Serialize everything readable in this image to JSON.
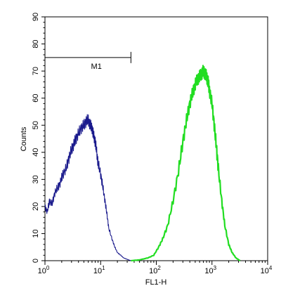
{
  "chart_data": {
    "type": "line",
    "xlabel": "FL1-H",
    "ylabel": "Counts",
    "x_scale": "log",
    "xlim": [
      1,
      10000
    ],
    "ylim": [
      0,
      90
    ],
    "x_ticks": [
      {
        "value": 1,
        "base": "10",
        "exp": "0"
      },
      {
        "value": 10,
        "base": "10",
        "exp": "1"
      },
      {
        "value": 100,
        "base": "10",
        "exp": "2"
      },
      {
        "value": 1000,
        "base": "10",
        "exp": "3"
      },
      {
        "value": 10000,
        "base": "10",
        "exp": "4"
      }
    ],
    "y_ticks": [
      "0",
      "10",
      "20",
      "30",
      "40",
      "50",
      "60",
      "70",
      "80",
      "90"
    ],
    "grid": false,
    "marker_gate": {
      "label": "M1",
      "x_start": 1,
      "x_end": 35,
      "y": 75
    },
    "series": [
      {
        "color": "#1a1a8c",
        "points": [
          [
            1.0,
            20
          ],
          [
            1.1,
            18
          ],
          [
            1.2,
            22
          ],
          [
            1.35,
            21
          ],
          [
            1.5,
            25
          ],
          [
            1.7,
            27
          ],
          [
            1.9,
            29
          ],
          [
            2.1,
            32
          ],
          [
            2.4,
            34
          ],
          [
            2.7,
            38
          ],
          [
            3.0,
            41
          ],
          [
            3.3,
            43
          ],
          [
            3.6,
            45
          ],
          [
            4.0,
            47
          ],
          [
            4.5,
            49
          ],
          [
            5.0,
            50
          ],
          [
            5.5,
            51.5
          ],
          [
            6.0,
            52
          ],
          [
            6.5,
            50
          ],
          [
            7.0,
            49
          ],
          [
            7.5,
            46
          ],
          [
            8.0,
            44
          ],
          [
            8.5,
            40
          ],
          [
            9.0,
            36
          ],
          [
            10,
            32
          ],
          [
            11,
            27
          ],
          [
            12,
            22
          ],
          [
            13,
            17
          ],
          [
            14,
            12
          ],
          [
            16,
            8
          ],
          [
            18,
            5
          ],
          [
            20,
            3
          ],
          [
            23,
            2
          ],
          [
            26,
            1
          ],
          [
            30,
            0.5
          ],
          [
            35,
            0
          ]
        ]
      },
      {
        "color": "#22dd22",
        "points": [
          [
            35,
            0
          ],
          [
            50,
            0.3
          ],
          [
            70,
            1
          ],
          [
            90,
            2
          ],
          [
            110,
            5
          ],
          [
            130,
            8
          ],
          [
            160,
            13
          ],
          [
            200,
            22
          ],
          [
            250,
            33
          ],
          [
            300,
            44
          ],
          [
            350,
            52
          ],
          [
            400,
            58
          ],
          [
            450,
            62
          ],
          [
            500,
            65
          ],
          [
            550,
            67
          ],
          [
            600,
            68
          ],
          [
            650,
            69
          ],
          [
            700,
            70
          ],
          [
            750,
            69
          ],
          [
            800,
            68
          ],
          [
            850,
            66
          ],
          [
            900,
            63
          ],
          [
            1000,
            58
          ],
          [
            1100,
            50
          ],
          [
            1200,
            42
          ],
          [
            1300,
            34
          ],
          [
            1500,
            22
          ],
          [
            1700,
            13
          ],
          [
            2000,
            6
          ],
          [
            2300,
            3
          ],
          [
            2700,
            1
          ],
          [
            3200,
            0
          ]
        ]
      }
    ]
  }
}
